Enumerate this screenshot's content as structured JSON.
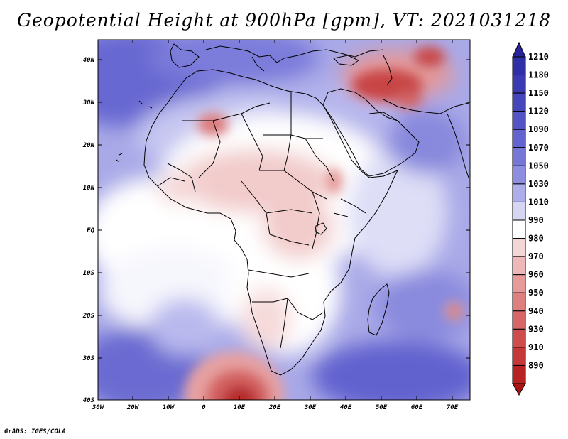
{
  "title": "Geopotential Height at 900hPa [gpm], VT: 2021031218",
  "credit": "GrADS: IGES/COLA",
  "map": {
    "lat_labels": [
      "40N",
      "30N",
      "20N",
      "10N",
      "EQ",
      "10S",
      "20S",
      "30S",
      "40S"
    ],
    "lon_labels": [
      "30W",
      "20W",
      "10W",
      "0",
      "10E",
      "20E",
      "30E",
      "40E",
      "50E",
      "60E",
      "70E"
    ]
  },
  "legend": {
    "entries": [
      {
        "label": "1210",
        "color": "#2f2fa8"
      },
      {
        "label": "1180",
        "color": "#3a3ab2"
      },
      {
        "label": "1150",
        "color": "#4646bc"
      },
      {
        "label": "1120",
        "color": "#5454c6"
      },
      {
        "label": "1090",
        "color": "#6464d0"
      },
      {
        "label": "1070",
        "color": "#7777d8"
      },
      {
        "label": "1050",
        "color": "#8e8ee0"
      },
      {
        "label": "1030",
        "color": "#aeaeea"
      },
      {
        "label": "1010",
        "color": "#d6d6f4"
      },
      {
        "label": "990",
        "color": "#ffffff"
      },
      {
        "label": "980",
        "color": "#f4d6d6"
      },
      {
        "label": "970",
        "color": "#eeb8b8"
      },
      {
        "label": "960",
        "color": "#e69a9a"
      },
      {
        "label": "950",
        "color": "#df8080"
      },
      {
        "label": "940",
        "color": "#d86666"
      },
      {
        "label": "930",
        "color": "#cf4c4c"
      },
      {
        "label": "910",
        "color": "#c53838"
      },
      {
        "label": "890",
        "color": "#b82222"
      }
    ],
    "top_color": "#26269a",
    "bottom_color": "#a81414"
  }
}
